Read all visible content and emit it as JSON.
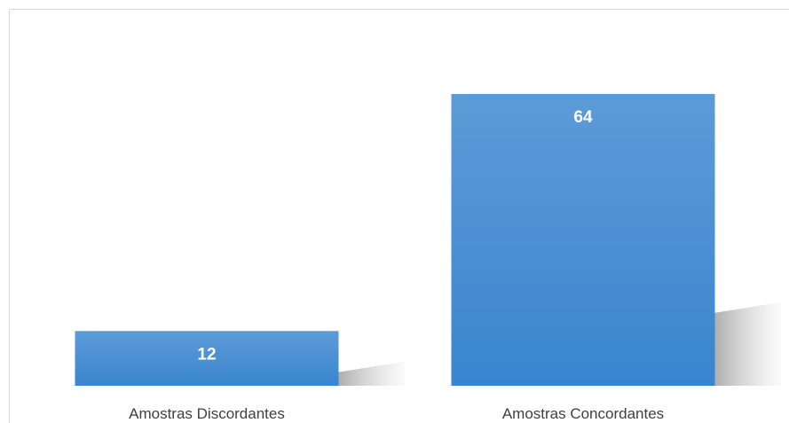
{
  "chart_data": {
    "type": "bar",
    "categories": [
      "Amostras Discordantes",
      "Amostras Concordantes"
    ],
    "values": [
      12,
      64
    ],
    "color": "#3a85cf"
  }
}
